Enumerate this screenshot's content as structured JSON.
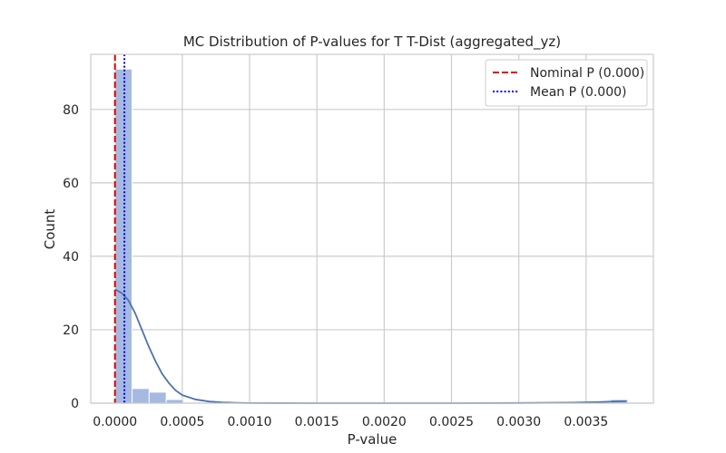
{
  "chart_data": {
    "type": "histogram",
    "title": "MC Distribution of P-values for T T-Dist (aggregated_yz)",
    "xlabel": "P-value",
    "ylabel": "Count",
    "xlim": [
      -0.00018,
      0.004
    ],
    "ylim": [
      0,
      95
    ],
    "x_ticks": [
      0.0,
      0.0005,
      0.001,
      0.0015,
      0.002,
      0.0025,
      0.003,
      0.0035
    ],
    "x_tick_labels": [
      "0.0000",
      "0.0005",
      "0.0010",
      "0.0015",
      "0.0020",
      "0.0025",
      "0.0030",
      "0.0035"
    ],
    "y_ticks": [
      0,
      20,
      40,
      60,
      80
    ],
    "y_tick_labels": [
      "0",
      "20",
      "40",
      "60",
      "80"
    ],
    "grid": true,
    "legend_position": "top-right",
    "bin_width": 0.000127,
    "bins": [
      {
        "x0": 0.0,
        "count": 91
      },
      {
        "x0": 0.000127,
        "count": 4
      },
      {
        "x0": 0.000254,
        "count": 3
      },
      {
        "x0": 0.000381,
        "count": 1
      },
      {
        "x0": 0.000508,
        "count": 0
      },
      {
        "x0": 0.000635,
        "count": 0
      },
      {
        "x0": 0.000762,
        "count": 0
      },
      {
        "x0": 0.000889,
        "count": 0
      },
      {
        "x0": 0.001016,
        "count": 0
      },
      {
        "x0": 0.001143,
        "count": 0
      },
      {
        "x0": 0.00127,
        "count": 0
      },
      {
        "x0": 0.001397,
        "count": 0
      },
      {
        "x0": 0.001524,
        "count": 0
      },
      {
        "x0": 0.001651,
        "count": 0
      },
      {
        "x0": 0.001778,
        "count": 0
      },
      {
        "x0": 0.001905,
        "count": 0
      },
      {
        "x0": 0.002032,
        "count": 0
      },
      {
        "x0": 0.002159,
        "count": 0
      },
      {
        "x0": 0.002286,
        "count": 0
      },
      {
        "x0": 0.002413,
        "count": 0
      },
      {
        "x0": 0.00254,
        "count": 0
      },
      {
        "x0": 0.002667,
        "count": 0
      },
      {
        "x0": 0.002794,
        "count": 0
      },
      {
        "x0": 0.002921,
        "count": 0
      },
      {
        "x0": 0.003048,
        "count": 0
      },
      {
        "x0": 0.003175,
        "count": 0
      },
      {
        "x0": 0.003302,
        "count": 0
      },
      {
        "x0": 0.003429,
        "count": 0
      },
      {
        "x0": 0.003556,
        "count": 0
      },
      {
        "x0": 0.003683,
        "count": 1
      }
    ],
    "kde": {
      "x": [
        0.0,
        5e-05,
        0.0001,
        0.00015,
        0.0002,
        0.00025,
        0.0003,
        0.00035,
        0.0004,
        0.00045,
        0.0005,
        0.0006,
        0.0007,
        0.0008,
        0.0009,
        0.001,
        0.0012,
        0.0015,
        0.002,
        0.0025,
        0.003,
        0.0034,
        0.0036,
        0.0037,
        0.0038
      ],
      "y": [
        31,
        30,
        28,
        24.5,
        20,
        15.5,
        11.5,
        8,
        5.5,
        3.5,
        2.2,
        1.0,
        0.45,
        0.2,
        0.1,
        0.04,
        0.01,
        0.0,
        0.0,
        0.0,
        0.05,
        0.15,
        0.3,
        0.45,
        0.55
      ]
    },
    "colors": {
      "bar_fill": "#a6b9e0",
      "bar_edge": "#ffffff",
      "kde_line": "#4c72b0",
      "grid": "#cccccc",
      "nominal_line": "#e00000",
      "mean_line": "#0000e0"
    },
    "reference_lines": [
      {
        "name": "Nominal P (0.000)",
        "x": 0.0,
        "style": "dashed",
        "color": "#e00000"
      },
      {
        "name": "Mean P (0.000)",
        "x": 7e-05,
        "style": "dotted",
        "color": "#0000e0"
      }
    ]
  }
}
